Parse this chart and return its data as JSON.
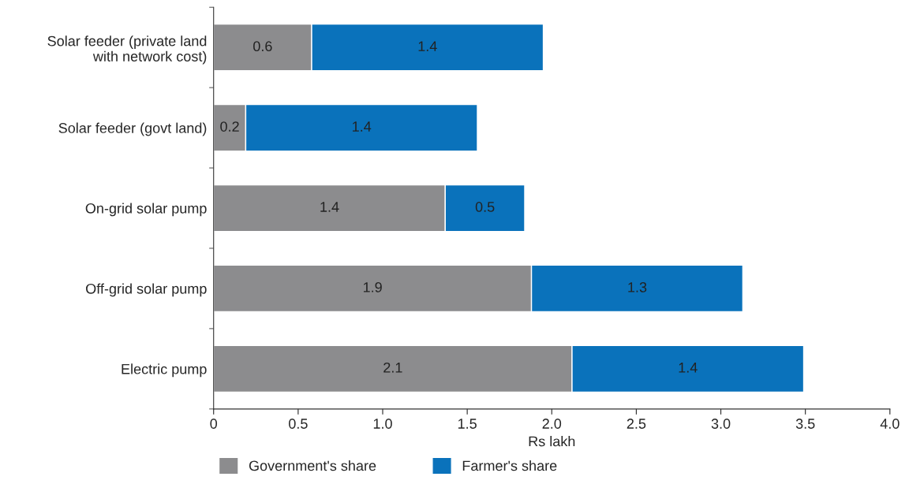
{
  "chart_data": {
    "type": "bar",
    "orientation": "horizontal",
    "stacked": true,
    "xlabel": "Rs lakh",
    "categories": [
      "Solar feeder (private land\nwith network cost)",
      "Solar feeder (govt land)",
      "On-grid solar pump",
      "Off-grid solar pump",
      "Electric pump"
    ],
    "series": [
      {
        "name": "Government's share",
        "color": "#8c8c8e",
        "values": [
          0.58,
          0.19,
          1.37,
          1.88,
          2.12
        ],
        "value_labels": [
          "0.6",
          "0.2",
          "1.4",
          "1.9",
          "2.1"
        ]
      },
      {
        "name": "Farmer's share",
        "color": "#0a72bb",
        "values": [
          1.37,
          1.37,
          0.47,
          1.25,
          1.37
        ],
        "value_labels": [
          "1.4",
          "1.4",
          "0.5",
          "1.3",
          "1.4"
        ]
      }
    ],
    "xlim": [
      0,
      4.0
    ],
    "xticks": [
      0,
      0.5,
      {
        "value": 1.0,
        "label": "1.0"
      },
      1.5,
      {
        "value": 2.0,
        "label": "2.0"
      },
      2.5,
      {
        "value": 3.0,
        "label": "3.0"
      },
      3.5,
      {
        "value": 4.0,
        "label": "4.0"
      }
    ],
    "grid": false,
    "legend": "bottom"
  }
}
